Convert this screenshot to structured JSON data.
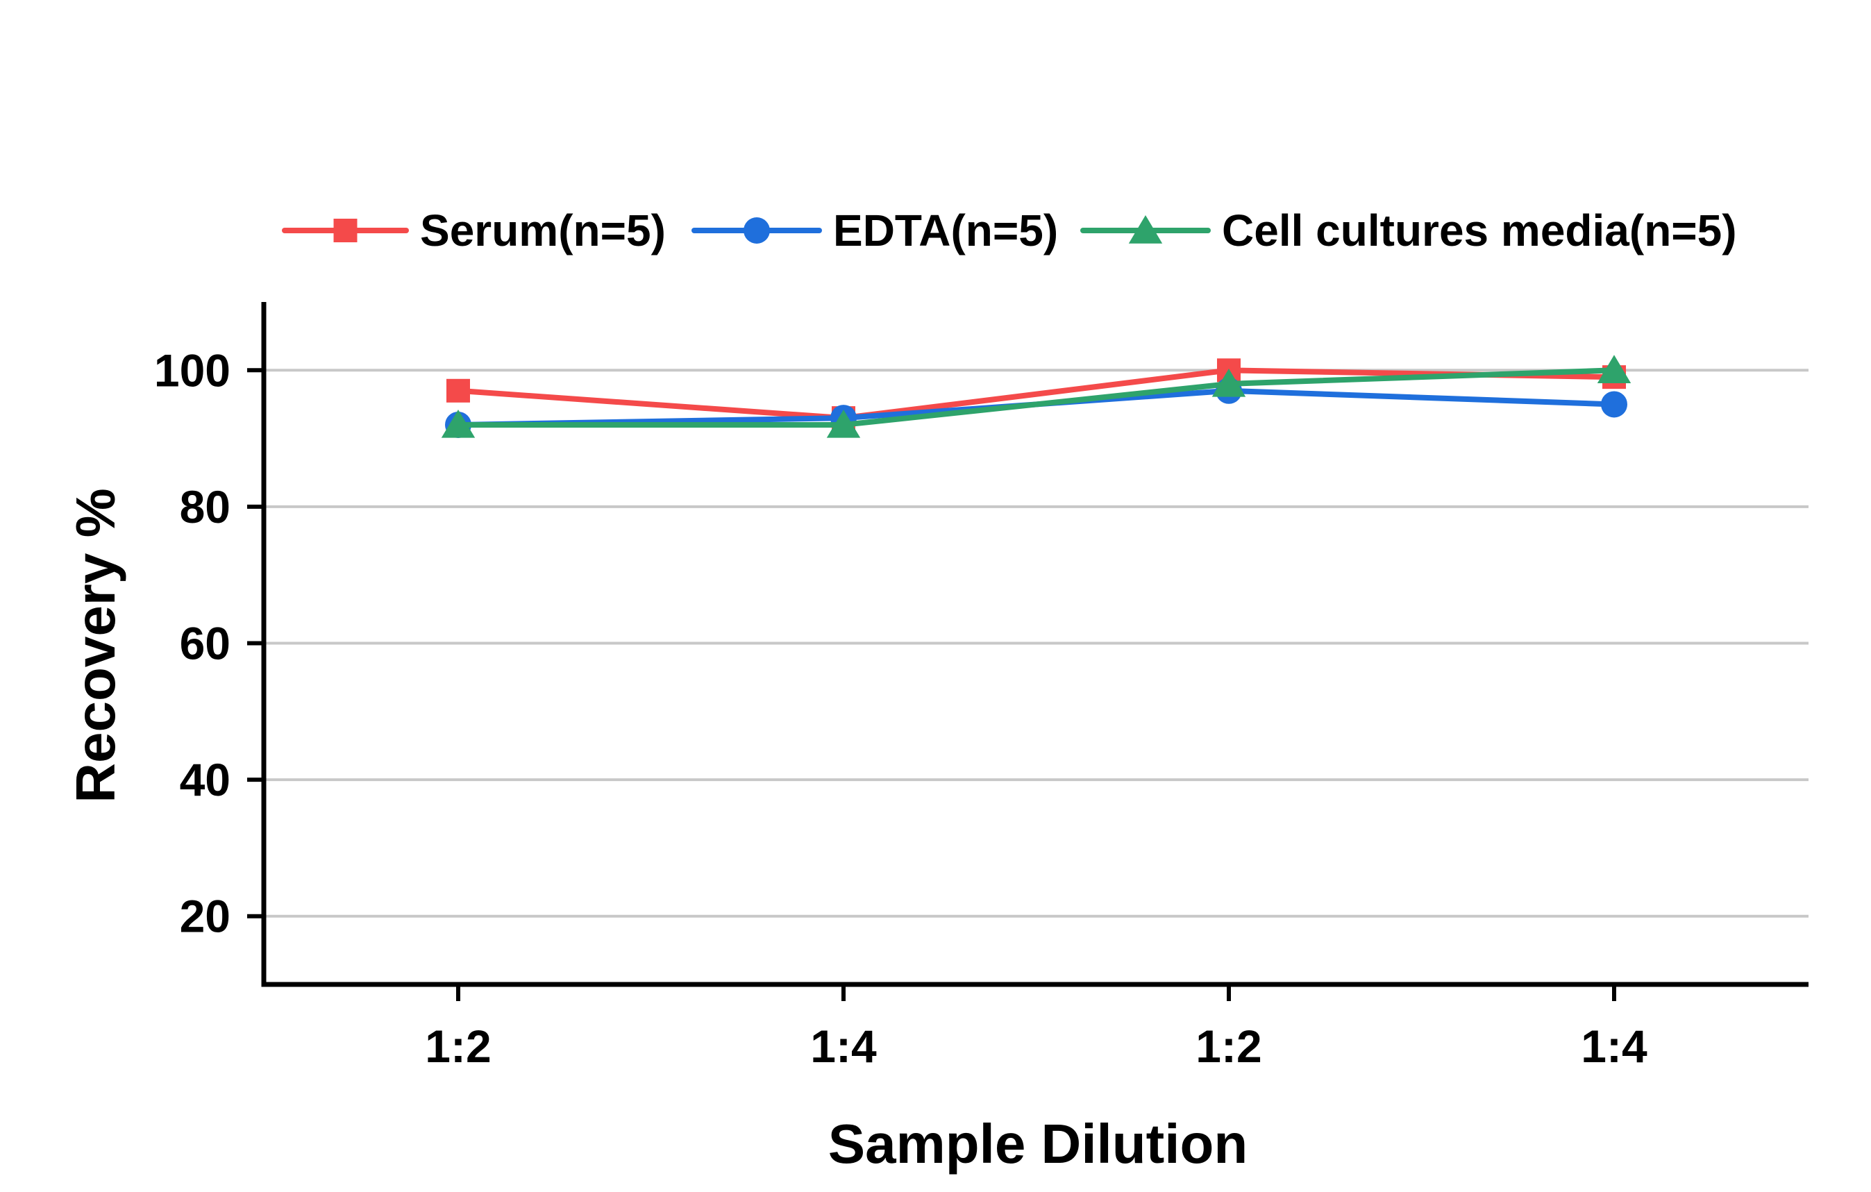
{
  "chart_data": {
    "type": "line",
    "title": "",
    "xlabel": "Sample Dilution",
    "ylabel": "Recovery %",
    "categories": [
      "1:2",
      "1:4",
      "1:2",
      "1:4"
    ],
    "ylim": [
      10,
      110
    ],
    "yticks": [
      20,
      40,
      60,
      80,
      100
    ],
    "grid": true,
    "legend_position": "top",
    "series": [
      {
        "name": "Serum(n=5)",
        "values": [
          97,
          93,
          100,
          99
        ],
        "color": "#f44a4a",
        "marker": "square"
      },
      {
        "name": "EDTA(n=5)",
        "values": [
          92,
          93,
          97,
          95
        ],
        "color": "#1f6fdc",
        "marker": "circle"
      },
      {
        "name": "Cell cultures media(n=5)",
        "values": [
          92,
          92,
          98,
          100
        ],
        "color": "#2ea36b",
        "marker": "triangle"
      }
    ]
  }
}
